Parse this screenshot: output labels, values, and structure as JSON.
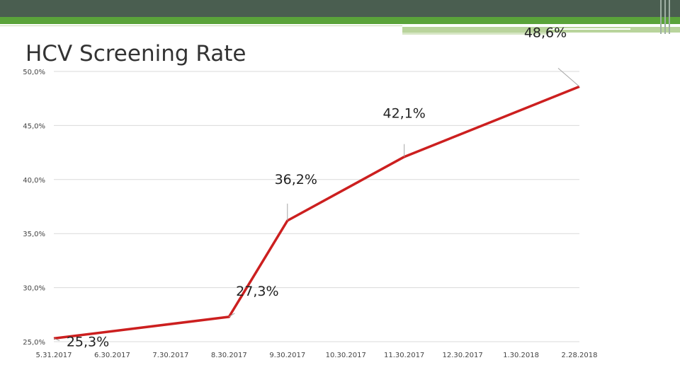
{
  "chart_data": {
    "type": "line",
    "title": "HCV Screening Rate",
    "xlabel": "",
    "ylabel": "",
    "categories": [
      "5.31.2017",
      "6.30.2017",
      "7.30.2017",
      "8.30.2017",
      "9.30.2017",
      "10.30.2017",
      "11.30.2017",
      "12.30.2017",
      "1.30.2018",
      "2.28.2018"
    ],
    "series": [
      {
        "values": [
          25.3,
          null,
          null,
          27.3,
          36.2,
          null,
          42.1,
          null,
          null,
          48.6
        ]
      }
    ],
    "data_labels": [
      "25,3%",
      "27,3%",
      "36,2%",
      "42,1%",
      "48,6%"
    ],
    "yticks": [
      "25,0%",
      "30,0%",
      "35,0%",
      "40,0%",
      "45,0%",
      "50,0%"
    ],
    "ylim": [
      25,
      50
    ],
    "grid": true,
    "legend": "none",
    "line_color": "#cc1f1f",
    "grid_color": "#d9d9d9"
  }
}
